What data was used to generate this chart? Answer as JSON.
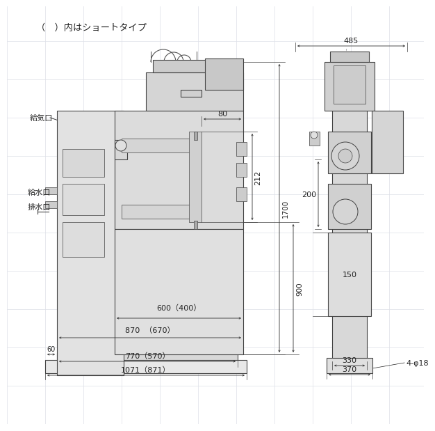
{
  "bg_color": "#ffffff",
  "panel_color": "#f0f0f0",
  "line_color": "#444444",
  "dim_color": "#222222",
  "grid_color": "#dde0e8",
  "fill_light": "#e8e8e8",
  "fill_mid": "#d8d8d8",
  "fill_dark": "#c8c8c8",
  "title_text": "（　）内はショートタイプ",
  "label_kyuki": "給気口",
  "label_kyusui": "給水口",
  "label_haisui": "排水口",
  "label_4phi": "4-φ18",
  "dim_80": "80",
  "dim_212": "212",
  "dim_1700": "1700",
  "dim_900": "900",
  "dim_600": "600（400）",
  "dim_870": "870  （670）",
  "dim_60": "60",
  "dim_770": "770（570）",
  "dim_1071": "1071（871）",
  "dim_485": "485",
  "dim_200": "200",
  "dim_150": "150",
  "dim_330": "330",
  "dim_370": "370"
}
